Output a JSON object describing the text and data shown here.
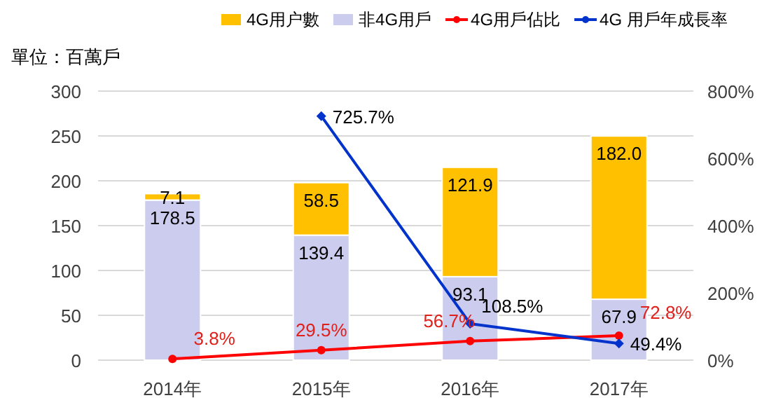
{
  "chart_data": {
    "type": "bar",
    "stacked": true,
    "ylabel": "單位：百萬戶",
    "categories": [
      "2014年",
      "2015年",
      "2016年",
      "2017年"
    ],
    "series": [
      {
        "name": "非4G用戶",
        "color": "#ccccee",
        "values": [
          178.5,
          139.4,
          93.1,
          67.9
        ],
        "value_labels": [
          "178.5",
          "139.4",
          "93.1",
          "67.9"
        ]
      },
      {
        "name": "4G用户數",
        "color": "#ffc000",
        "values": [
          7.1,
          58.5,
          121.9,
          182.0
        ],
        "value_labels": [
          "7.1",
          "58.5",
          "121.9",
          "182.0"
        ]
      },
      {
        "name": "4G用戶佔比",
        "type": "line",
        "axis": "y2",
        "color": "#ff0000",
        "marker": "circle",
        "values": [
          3.8,
          29.5,
          56.7,
          72.8
        ],
        "value_labels": [
          "3.8%",
          "29.5%",
          "56.7%",
          "72.8%"
        ]
      },
      {
        "name": "4G 用戶年成長率",
        "type": "line",
        "axis": "y2",
        "color": "#0033cc",
        "marker": "diamond",
        "values": [
          null,
          725.7,
          108.5,
          49.4
        ],
        "value_labels": [
          null,
          "725.7%",
          "108.5%",
          "49.4%"
        ]
      }
    ],
    "ylim": [
      0,
      300
    ],
    "yticks": [
      0,
      50,
      100,
      150,
      200,
      250,
      300
    ],
    "y2lim": [
      0,
      800
    ],
    "y2ticks": [
      {
        "value": 0,
        "label": "0%"
      },
      {
        "value": 200,
        "label": "200%"
      },
      {
        "value": 400,
        "label": "400%"
      },
      {
        "value": 600,
        "label": "600%"
      },
      {
        "value": 800,
        "label": "800%"
      }
    ],
    "grid": "y",
    "legend": "top"
  }
}
